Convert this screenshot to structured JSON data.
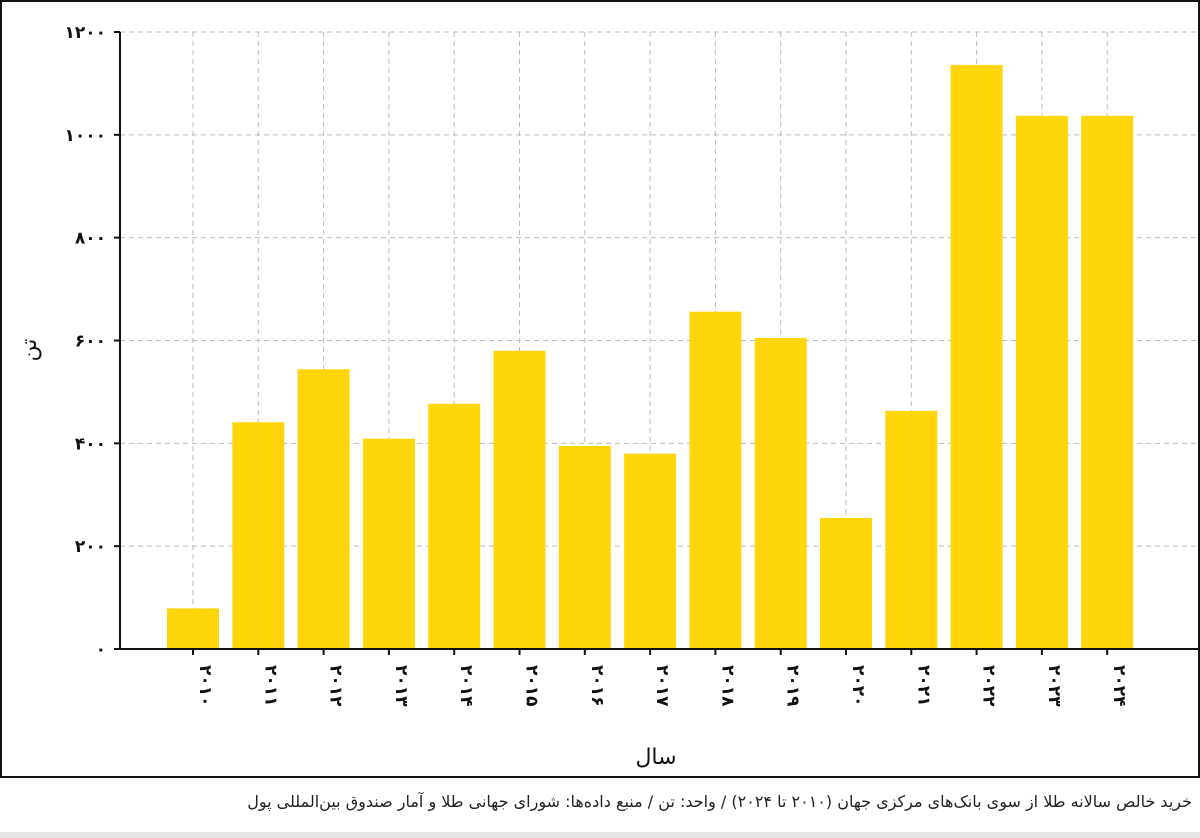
{
  "chart_data": {
    "type": "bar",
    "categories": [
      "۲۰۱۰",
      "۲۰۱۱",
      "۲۰۱۲",
      "۲۰۱۳",
      "۲۰۱۴",
      "۲۰۱۵",
      "۲۰۱۶",
      "۲۰۱۷",
      "۲۰۱۸",
      "۲۰۱۹",
      "۲۰۲۰",
      "۲۰۲۱",
      "۲۰۲۲",
      "۲۰۲۳",
      "۲۰۲۴"
    ],
    "values": [
      79,
      441,
      544,
      409,
      477,
      580,
      395,
      380,
      656,
      605,
      255,
      463,
      1136,
      1037,
      1037
    ],
    "ylabel": "تن",
    "xlabel": "سال",
    "yticks": [
      "۰",
      "۲۰۰",
      "۴۰۰",
      "۶۰۰",
      "۸۰۰",
      "۱۰۰۰",
      "۱۲۰۰"
    ],
    "ylim": [
      0,
      1200
    ],
    "grid": true,
    "bar_color": "#FFD60A"
  },
  "caption": "خرید خالص سالانه طلا از سوی بانک‌های مرکزی جهان (۲۰۱۰ تا ۲۰۲۴) / واحد: تن / منبع داده‌ها: شورای جهانی طلا و آمار صندوق بین‌المللی پول"
}
